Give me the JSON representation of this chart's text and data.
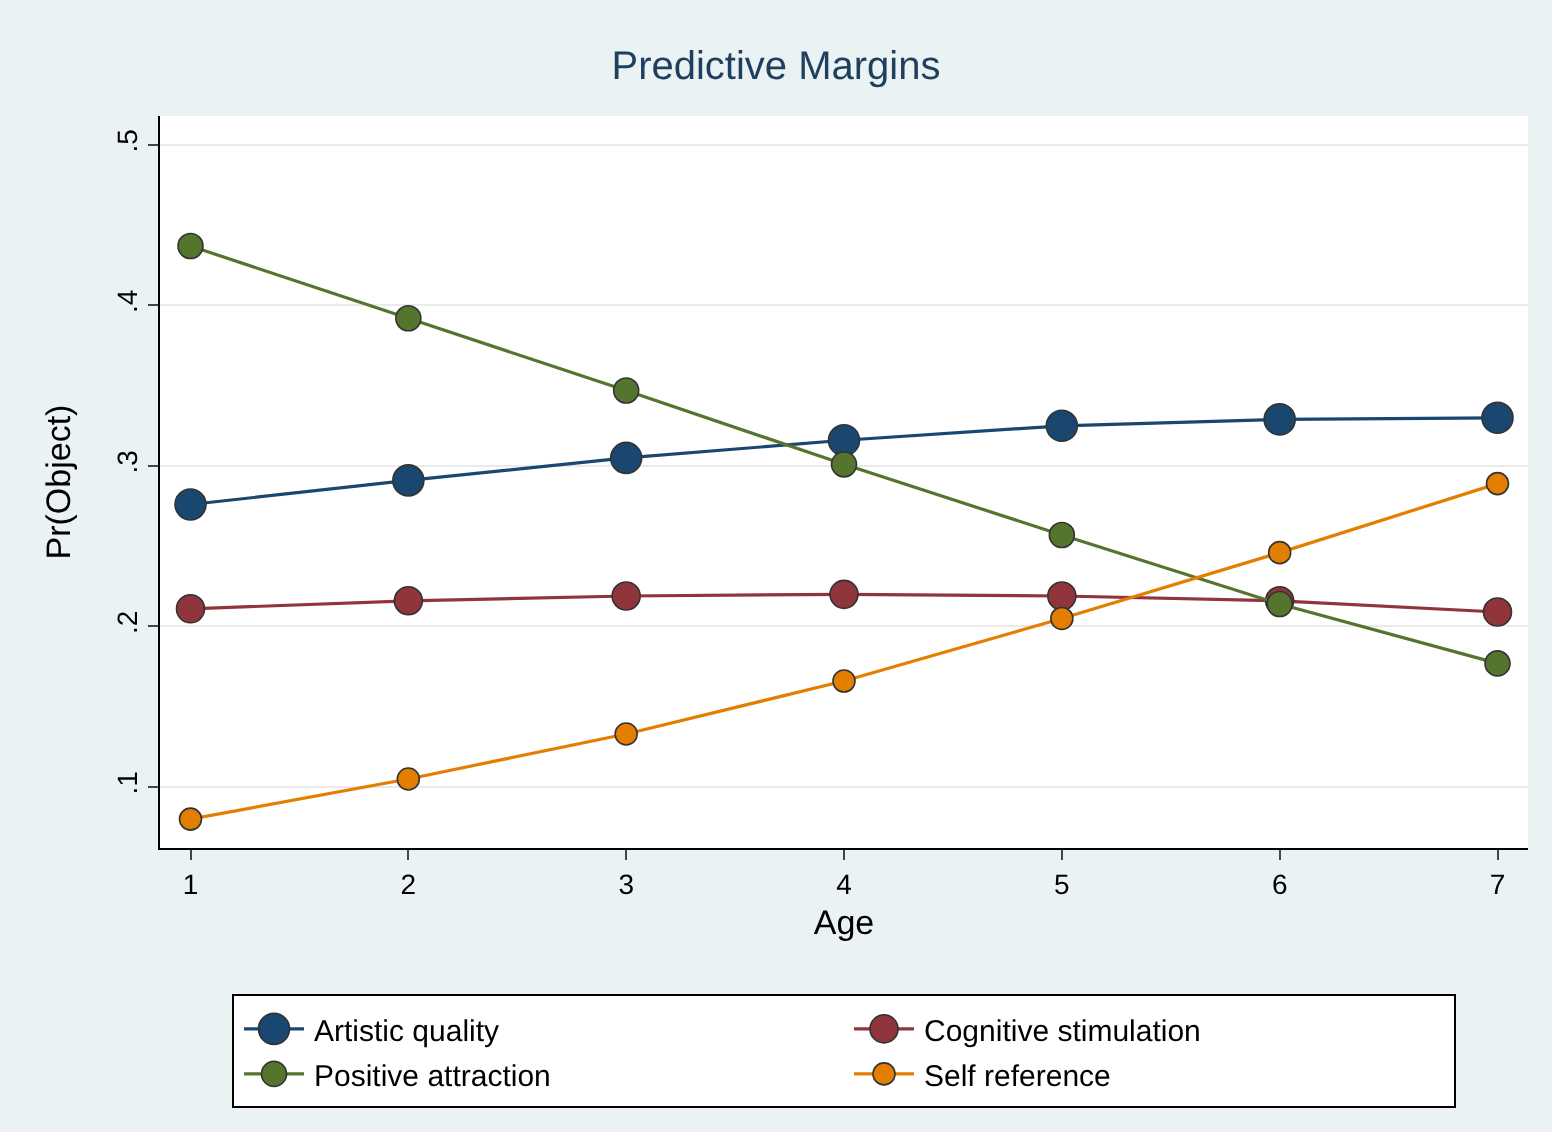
{
  "chart_data": {
    "type": "line",
    "title": "Predictive Margins",
    "xlabel": "Age",
    "ylabel": "Pr(Object)",
    "x": [
      1,
      2,
      3,
      4,
      5,
      6,
      7
    ],
    "series": [
      {
        "name": "Artistic quality",
        "color": "#1a476f",
        "values": [
          0.276,
          0.291,
          0.305,
          0.316,
          0.325,
          0.329,
          0.33
        ]
      },
      {
        "name": "Cognitive stimulation",
        "color": "#90353b",
        "values": [
          0.211,
          0.216,
          0.219,
          0.22,
          0.219,
          0.216,
          0.209
        ]
      },
      {
        "name": "Positive attraction",
        "color": "#55752f",
        "values": [
          0.437,
          0.392,
          0.347,
          0.301,
          0.257,
          0.214,
          0.177
        ]
      },
      {
        "name": "Self reference",
        "color": "#e37e00",
        "values": [
          0.08,
          0.105,
          0.133,
          0.166,
          0.205,
          0.246,
          0.289
        ]
      }
    ],
    "xlim": [
      0.86,
      7.14
    ],
    "xticks": [
      1,
      2,
      3,
      4,
      5,
      6,
      7
    ],
    "ylim": [
      0.062,
      0.518
    ],
    "yticks": [
      {
        "value": 0.1,
        "label": ".1"
      },
      {
        "value": 0.2,
        "label": ".2"
      },
      {
        "value": 0.3,
        "label": ".3"
      },
      {
        "value": 0.4,
        "label": ".4"
      },
      {
        "value": 0.5,
        "label": ".5"
      }
    ],
    "grid": "y",
    "legend": "bottom",
    "marker": "circle",
    "line_style": "solid"
  }
}
